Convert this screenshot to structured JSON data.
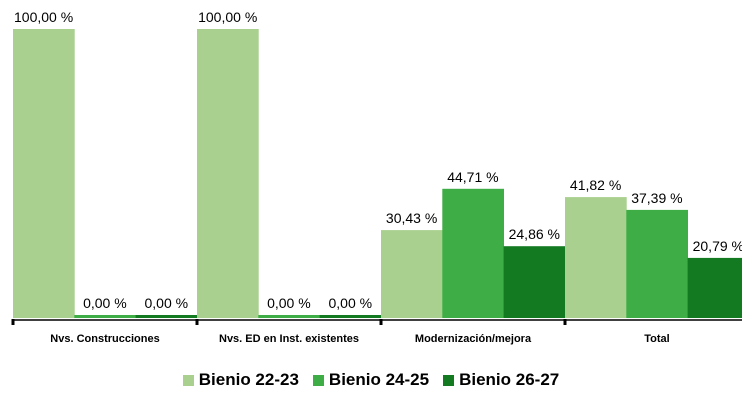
{
  "chart_data": {
    "type": "bar",
    "categories": [
      "Nvs. Construcciones",
      "Nvs. ED en Inst. existentes",
      "Modernización/mejora",
      "Total"
    ],
    "series": [
      {
        "name": "Bienio 22-23",
        "color": "#a9d08e",
        "values": [
          100.0,
          100.0,
          30.43,
          41.82
        ],
        "labels": [
          "100,00 %",
          "100,00 %",
          "30,43 %",
          "41,82 %"
        ]
      },
      {
        "name": "Bienio 24-25",
        "color": "#3fad46",
        "values": [
          0.0,
          0.0,
          44.71,
          37.39
        ],
        "labels": [
          "0,00 %",
          "0,00 %",
          "44,71 %",
          "37,39 %"
        ]
      },
      {
        "name": "Bienio 26-27",
        "color": "#147a22",
        "values": [
          0.0,
          0.0,
          24.86,
          20.79
        ],
        "labels": [
          "0,00 %",
          "0,00 %",
          "24,86 %",
          "20,79 %"
        ]
      }
    ],
    "ylim": [
      0,
      100
    ],
    "grid": false,
    "legend_position": "bottom"
  }
}
